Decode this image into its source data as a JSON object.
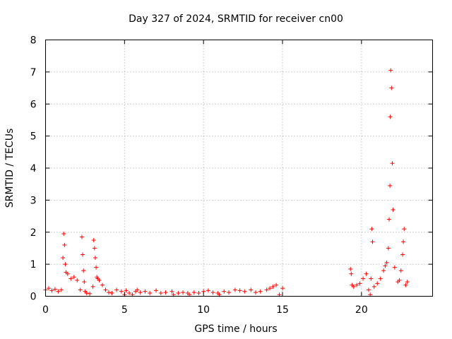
{
  "chart_data": {
    "type": "scatter",
    "title": "Day 327 of 2024, SRMTID for receiver cn00",
    "xlabel": "GPS time / hours",
    "ylabel": "SRMTID / TECUs",
    "xlim": [
      0,
      24.5
    ],
    "ylim": [
      0,
      8
    ],
    "xticks": [
      0,
      5,
      10,
      15,
      20
    ],
    "yticks": [
      0,
      1,
      2,
      3,
      4,
      5,
      6,
      7,
      8
    ],
    "grid": true,
    "marker": "plus",
    "color": "#ff0000",
    "series": [
      {
        "name": "SRMTID",
        "x": [
          0.0,
          0.2,
          0.4,
          0.6,
          0.8,
          1.0,
          1.1,
          1.15,
          1.2,
          1.25,
          1.3,
          1.4,
          1.6,
          1.8,
          2.0,
          2.2,
          2.3,
          2.35,
          2.4,
          2.45,
          2.5,
          2.6,
          2.8,
          3.0,
          3.05,
          3.1,
          3.15,
          3.2,
          3.25,
          3.3,
          3.4,
          3.6,
          3.8,
          4.0,
          4.2,
          4.5,
          4.8,
          5.0,
          5.1,
          5.3,
          5.5,
          5.7,
          5.8,
          6.0,
          6.3,
          6.6,
          7.0,
          7.3,
          7.6,
          8.0,
          8.1,
          8.4,
          8.7,
          9.0,
          9.1,
          9.4,
          9.7,
          10.0,
          10.3,
          10.6,
          10.9,
          11.0,
          11.3,
          11.6,
          12.0,
          12.3,
          12.6,
          13.0,
          13.3,
          13.6,
          14.0,
          14.2,
          14.4,
          14.6,
          14.8,
          15.0,
          19.3,
          19.35,
          19.4,
          19.5,
          19.7,
          19.9,
          20.1,
          20.3,
          20.45,
          20.55,
          20.6,
          20.65,
          20.7,
          20.8,
          21.0,
          21.2,
          21.4,
          21.5,
          21.6,
          21.7,
          21.75,
          21.8,
          21.82,
          21.85,
          21.9,
          21.95,
          22.0,
          22.1,
          22.3,
          22.4,
          22.5,
          22.6,
          22.65,
          22.7,
          22.8,
          22.9
        ],
        "values": [
          0.2,
          0.25,
          0.18,
          0.22,
          0.15,
          0.2,
          1.2,
          1.95,
          1.6,
          1.0,
          0.75,
          0.7,
          0.55,
          0.6,
          0.5,
          0.2,
          1.85,
          1.3,
          0.8,
          0.45,
          0.15,
          0.1,
          0.08,
          0.3,
          1.75,
          1.5,
          1.2,
          0.9,
          0.6,
          0.55,
          0.5,
          0.35,
          0.2,
          0.12,
          0.1,
          0.2,
          0.15,
          0.05,
          0.18,
          0.1,
          0.05,
          0.15,
          0.2,
          0.12,
          0.15,
          0.1,
          0.18,
          0.1,
          0.12,
          0.15,
          0.05,
          0.1,
          0.12,
          0.1,
          0.05,
          0.12,
          0.1,
          0.15,
          0.18,
          0.12,
          0.1,
          0.05,
          0.15,
          0.12,
          0.2,
          0.18,
          0.15,
          0.2,
          0.12,
          0.15,
          0.2,
          0.25,
          0.3,
          0.35,
          0.05,
          0.25,
          0.85,
          0.7,
          0.35,
          0.3,
          0.35,
          0.4,
          0.55,
          0.7,
          0.2,
          0.05,
          0.55,
          2.1,
          1.7,
          0.3,
          0.4,
          0.55,
          0.8,
          0.95,
          1.05,
          1.5,
          2.4,
          3.45,
          5.6,
          7.05,
          6.5,
          4.15,
          2.7,
          0.9,
          0.45,
          0.5,
          0.8,
          1.3,
          1.7,
          2.1,
          0.35,
          0.45
        ]
      }
    ]
  }
}
